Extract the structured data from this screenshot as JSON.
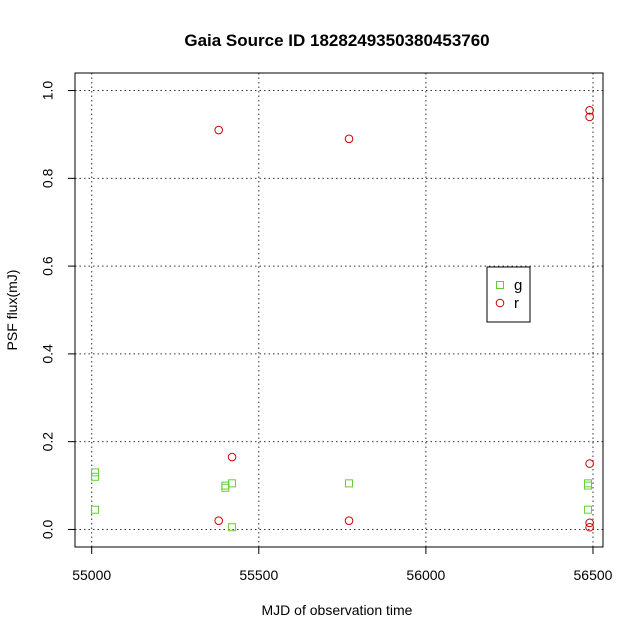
{
  "chart_data": {
    "type": "scatter",
    "title": "Gaia Source ID 1828249350380453760",
    "xlabel": "MJD of observation time",
    "ylabel": "PSF flux(mJ)",
    "xlim": [
      54950,
      56530
    ],
    "ylim": [
      -0.04,
      1.04
    ],
    "x_ticks": [
      55000,
      55500,
      56000,
      56500
    ],
    "y_ticks": [
      0.0,
      0.2,
      0.4,
      0.6,
      0.8,
      1.0
    ],
    "x_tick_labels": [
      "55000",
      "55500",
      "56000",
      "56500"
    ],
    "y_tick_labels": [
      "0.0",
      "0.2",
      "0.4",
      "0.6",
      "0.8",
      "1.0"
    ],
    "grid": true,
    "legend_position": "right",
    "series": [
      {
        "name": "g",
        "marker": "square",
        "color": "#66cc33",
        "points": [
          {
            "x": 55010,
            "y": 0.13
          },
          {
            "x": 55010,
            "y": 0.12
          },
          {
            "x": 55010,
            "y": 0.045
          },
          {
            "x": 55400,
            "y": 0.1
          },
          {
            "x": 55400,
            "y": 0.095
          },
          {
            "x": 55420,
            "y": 0.105
          },
          {
            "x": 55420,
            "y": 0.005
          },
          {
            "x": 55770,
            "y": 0.105
          },
          {
            "x": 56485,
            "y": 0.105
          },
          {
            "x": 56485,
            "y": 0.1
          },
          {
            "x": 56485,
            "y": 0.045
          }
        ]
      },
      {
        "name": "r",
        "marker": "circle",
        "color": "#cc0000",
        "points": [
          {
            "x": 55380,
            "y": 0.91
          },
          {
            "x": 55380,
            "y": 0.02
          },
          {
            "x": 55420,
            "y": 0.165
          },
          {
            "x": 55770,
            "y": 0.89
          },
          {
            "x": 55770,
            "y": 0.02
          },
          {
            "x": 56490,
            "y": 0.955
          },
          {
            "x": 56490,
            "y": 0.94
          },
          {
            "x": 56490,
            "y": 0.15
          },
          {
            "x": 56490,
            "y": 0.015
          },
          {
            "x": 56490,
            "y": 0.005
          }
        ]
      }
    ]
  }
}
